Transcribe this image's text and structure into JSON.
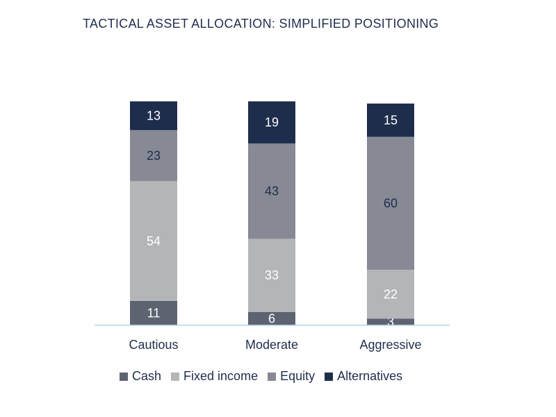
{
  "chart_data": {
    "type": "bar",
    "stacked": true,
    "title": "TACTICAL ASSET ALLOCATION: SIMPLIFIED POSITIONING",
    "categories": [
      "Cautious",
      "Moderate",
      "Aggressive"
    ],
    "series": [
      {
        "name": "Cash",
        "values": [
          11,
          6,
          3
        ],
        "color": "#5d6371",
        "label_color": "#ffffff"
      },
      {
        "name": "Fixed income",
        "values": [
          54,
          33,
          22
        ],
        "color": "#b3b5b8",
        "label_color": "#ffffff"
      },
      {
        "name": "Equity",
        "values": [
          23,
          43,
          60
        ],
        "color": "#878a94",
        "label_color": "#1f2d4d"
      },
      {
        "name": "Alternatives",
        "values": [
          13,
          19,
          15
        ],
        "color": "#1f2d4d",
        "label_color": "#ffffff"
      }
    ],
    "ylim": [
      0,
      100
    ],
    "grid": false,
    "legend_position": "bottom",
    "baseline_color": "#b7d4e8"
  }
}
